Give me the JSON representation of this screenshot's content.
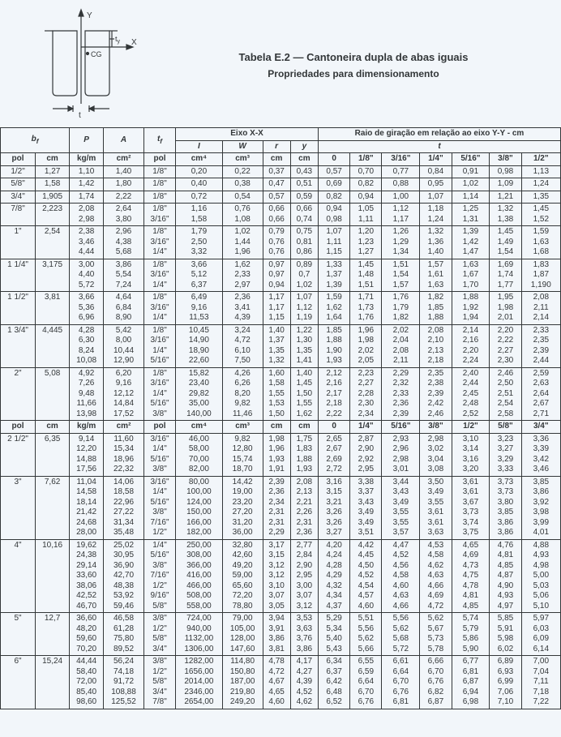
{
  "title_main": "Tabela E.2 — Cantoneira dupla de abas iguais",
  "title_sub": "Propriedades para dimensionamento",
  "diagram_labels": {
    "Y": "Y",
    "X": "X",
    "t_y": "t_y",
    "CG": "CG",
    "t": "t"
  },
  "header": {
    "bf": "b_f",
    "P": "P",
    "A": "A",
    "tf": "t_f",
    "eixo": "Eixo X-X",
    "raio": "Raio de giração em relação ao eixo Y-Y - cm",
    "I": "I",
    "W": "W",
    "r": "r",
    "y": "y",
    "t": "t",
    "pol": "pol",
    "cm": "cm",
    "kgm": "kg/m",
    "cm2": "cm²",
    "cm4": "cm⁴",
    "cm3": "cm³",
    "g0": "0",
    "g1_8": "1/8\"",
    "g3_16": "3/16\"",
    "g1_4": "1/4\"",
    "g5_16": "5/16\"",
    "g3_8": "3/8\"",
    "g1_2": "1/2\"",
    "g5_8": "5/8\"",
    "g3_4": "3/4\""
  },
  "rows1": [
    {
      "bf_pol": "1/2\"",
      "bf_cm": "1,27",
      "P": "1,10",
      "A": "1,40",
      "tf": "1/8\"",
      "I": "0,20",
      "W": "0,22",
      "r": "0,37",
      "y": "0,43",
      "g": [
        "0,57",
        "0,70",
        "0,77",
        "0,84",
        "0,91",
        "0,98",
        "1,13"
      ]
    },
    {
      "bf_pol": "5/8\"",
      "bf_cm": "1,58",
      "P": "1,42",
      "A": "1,80",
      "tf": "1/8\"",
      "I": "0,40",
      "W": "0,38",
      "r": "0,47",
      "y": "0,51",
      "g": [
        "0,69",
        "0,82",
        "0,88",
        "0,95",
        "1,02",
        "1,09",
        "1,24"
      ]
    },
    {
      "bf_pol": "3/4\"",
      "bf_cm": "1,905",
      "P": "1,74",
      "A": "2,22",
      "tf": "1/8\"",
      "I": "0,72",
      "W": "0,54",
      "r": "0,57",
      "y": "0,59",
      "g": [
        "0,82",
        "0,94",
        "1,00",
        "1,07",
        "1,14",
        "1,21",
        "1,35"
      ]
    },
    {
      "bf_pol": "7/8\"",
      "bf_cm": "2,223",
      "P": "2,08\n2,98",
      "A": "2,64\n3,80",
      "tf": "1/8\"\n3/16\"",
      "I": "1,16\n1,58",
      "W": "0,76\n1,08",
      "r": "0,66\n0,66",
      "y": "0,66\n0,74",
      "g": [
        "0,94\n0,98",
        "1,05\n1,11",
        "1,12\n1,17",
        "1,18\n1,24",
        "1,25\n1,31",
        "1,32\n1,38",
        "1,45\n1,52"
      ]
    },
    {
      "bf_pol": "1\"",
      "bf_cm": "2,54",
      "P": "2,38\n3,46\n4,44",
      "A": "2,96\n4,38\n5,68",
      "tf": "1/8\"\n3/16\"\n1/4\"",
      "I": "1,79\n2,50\n3,32",
      "W": "1,02\n1,44\n1,96",
      "r": "0,79\n0,76\n0,76",
      "y": "0,75\n0,81\n0,86",
      "g": [
        "1,07\n1,11\n1,15",
        "1,20\n1,23\n1,27",
        "1,26\n1,29\n1,34",
        "1,32\n1,36\n1,40",
        "1,39\n1,42\n1,47",
        "1,45\n1,49\n1,54",
        "1,59\n1,63\n1,68"
      ]
    },
    {
      "bf_pol": "1 1/4\"",
      "bf_cm": "3,175",
      "P": "3,00\n4,40\n5,72",
      "A": "3,86\n5,54\n7,24",
      "tf": "1/8\"\n3/16\"\n1/4\"",
      "I": "3,66\n5,12\n6,37",
      "W": "1,62\n2,33\n2,97",
      "r": "0,97\n0,97\n0,94",
      "y": "0,89\n0,7\n1,02",
      "g": [
        "1,33\n1,37\n1,39",
        "1,45\n1,48\n1,51",
        "1,51\n1,54\n1,57",
        "1,57\n1,61\n1,63",
        "1,63\n1,67\n1,70",
        "1,69\n1,74\n1,77",
        "1,83\n1,87\n1,190"
      ]
    },
    {
      "bf_pol": "1 1/2\"",
      "bf_cm": "3,81",
      "P": "3,66\n5,36\n6,96",
      "A": "4,64\n6,84\n8,90",
      "tf": "1/8\"\n3/16\"\n1/4\"",
      "I": "6,49\n9,16\n11,53",
      "W": "2,36\n3,41\n4,39",
      "r": "1,17\n1,17\n1,15",
      "y": "1,07\n1,12\n1,19",
      "g": [
        "1,59\n1,62\n1,64",
        "1,71\n1,73\n1,76",
        "1,76\n1,79\n1,82",
        "1,82\n1,85\n1,88",
        "1,88\n1,92\n1,94",
        "1,95\n1,98\n2,01",
        "2,08\n2,11\n2,14"
      ]
    },
    {
      "bf_pol": "1 3/4\"",
      "bf_cm": "4,445",
      "P": "4,28\n6,30\n8,24\n10,08",
      "A": "5,42\n8,00\n10,44\n12,90",
      "tf": "1/8\"\n3/16\"\n1/4\"\n5/16\"",
      "I": "10,45\n14,90\n18,90\n22,60",
      "W": "3,24\n4,72\n6,10\n7,50",
      "r": "1,40\n1,37\n1,35\n1,32",
      "y": "1,22\n1,30\n1,35\n1,41",
      "g": [
        "1,85\n1,88\n1,90\n1,93",
        "1,96\n1,98\n2,02\n2,05",
        "2,02\n2,04\n2,08\n2,11",
        "2,08\n2,10\n2,13\n2,18",
        "2,14\n2,16\n2,20\n2,24",
        "2,20\n2,22\n2,27\n2,30",
        "2,33\n2,35\n2,39\n2,44"
      ]
    },
    {
      "bf_pol": "2\"",
      "bf_cm": "5,08",
      "P": "4,92\n7,26\n9,48\n11,66\n13,98",
      "A": "6,20\n9,16\n12,12\n14,84\n17,52",
      "tf": "1/8\"\n3/16\"\n1/4\"\n5/16\"\n3/8\"",
      "I": "15,82\n23,40\n29,82\n35,00\n140,00",
      "W": "4,26\n6,26\n8,20\n9,82\n11,46",
      "r": "1,60\n1,58\n1,55\n1,53\n1,50",
      "y": "1,40\n1,45\n1,50\n1,55\n1,62",
      "g": [
        "2,12\n2,16\n2,17\n2,18\n2,22",
        "2,23\n2,27\n2,28\n2,30\n2,34",
        "2,29\n2,32\n2,33\n2,36\n2,39",
        "2,35\n2,38\n2,39\n2,42\n2,46",
        "2,40\n2,44\n2,45\n2,48\n2,52",
        "2,46\n2,50\n2,51\n2,54\n2,58",
        "2,59\n2,63\n2,64\n2,67\n2,71"
      ]
    }
  ],
  "rows2": [
    {
      "bf_pol": "2 1/2\"",
      "bf_cm": "6,35",
      "P": "9,14\n12,20\n14,88\n17,56",
      "A": "11,60\n15,34\n18,96\n22,32",
      "tf": "3/16\"\n1/4\"\n5/16\"\n3/8\"",
      "I": "46,00\n58,00\n70,00\n82,00",
      "W": "9,82\n12,80\n15,74\n18,70",
      "r": "1,98\n1,96\n1,93\n1,91",
      "y": "1,75\n1,83\n1,88\n1,93",
      "g": [
        "2,65\n2,67\n2,69\n2,72",
        "2,87\n2,90\n2,92\n2,95",
        "2,93\n2,96\n2,98\n3,01",
        "2,98\n3,02\n3,04\n3,08",
        "3,10\n3,14\n3,16\n3,20",
        "3,23\n3,27\n3,29\n3,33",
        "3,36\n3,39\n3,42\n3,46"
      ]
    },
    {
      "bf_pol": "3\"",
      "bf_cm": "7,62",
      "P": "11,04\n14,58\n18,14\n21,42\n24,68\n28,00",
      "A": "14,06\n18,58\n22,96\n27,22\n31,34\n35,48",
      "tf": "3/16\"\n1/4\"\n5/16\"\n3/8\"\n7/16\"\n1/2\"",
      "I": "80,00\n100,00\n124,00\n150,00\n166,00\n182,00",
      "W": "14,42\n19,00\n23,20\n27,20\n31,20\n36,00",
      "r": "2,39\n2,36\n2,34\n2,31\n2,31\n2,29",
      "y": "2,08\n2,13\n2,21\n2,26\n2,31\n2,36",
      "g": [
        "3,16\n3,15\n3,21\n3,26\n3,26\n3,27",
        "3,38\n3,37\n3,43\n3,49\n3,49\n3,51",
        "3,44\n3,43\n3,49\n3,55\n3,55\n3,57",
        "3,50\n3,49\n3,55\n3,61\n3,61\n3,63",
        "3,61\n3,61\n3,67\n3,73\n3,74\n3,75",
        "3,73\n3,73\n3,80\n3,85\n3,86\n3,86",
        "3,85\n3,86\n3,92\n3,98\n3,99\n4,01"
      ]
    },
    {
      "bf_pol": "4\"",
      "bf_cm": "10,16",
      "P": "19,62\n24,38\n29,14\n33,60\n38,06\n42,52\n46,70",
      "A": "25,02\n30,95\n36,90\n42,70\n48,38\n53,92\n59,46",
      "tf": "1/4\"\n5/16\"\n3/8\"\n7/16\"\n1/2\"\n9/16\"\n5/8\"",
      "I": "250,00\n308,00\n366,00\n416,00\n466,00\n508,00\n558,00",
      "W": "32,80\n42,60\n49,20\n59,00\n65,60\n72,20\n78,80",
      "r": "3,17\n3,15\n3,12\n3,12\n3,10\n3,07\n3,05",
      "y": "2,77\n2,84\n2,90\n2,95\n3,00\n3,07\n3,12",
      "g": [
        "4,20\n4,24\n4,28\n4,29\n4,32\n4,34\n4,37",
        "4,42\n4,45\n4,50\n4,52\n4,54\n4,57\n4,60",
        "4,47\n4,52\n4,56\n4,58\n4,60\n4,63\n4,66",
        "4,53\n4,58\n4,62\n4,63\n4,66\n4,69\n4,72",
        "4,65\n4,69\n4,73\n4,75\n4,78\n4,81\n4,85",
        "4,76\n4,81\n4,85\n4,87\n4,90\n4,93\n4,97",
        "4,88\n4,93\n4,98\n5,00\n5,03\n5,06\n5,10"
      ]
    },
    {
      "bf_pol": "5\"",
      "bf_cm": "12,7",
      "P": "36,60\n48,20\n59,60\n70,20",
      "A": "46,58\n61,28\n75,80\n89,52",
      "tf": "3/8\"\n1/2\"\n5/8\"\n3/4\"",
      "I": "724,00\n940,00\n1132,00\n1306,00",
      "W": "79,00\n105,00\n128,00\n147,60",
      "r": "3,94\n3,91\n3,86\n3,81",
      "y": "3,53\n3,63\n3,76\n3,86",
      "g": [
        "5,29\n5,34\n5,40\n5,43",
        "5,51\n5,56\n5,62\n5,66",
        "5,56\n5,62\n5,68\n5,72",
        "5,62\n5,67\n5,73\n5,78",
        "5,74\n5,79\n5,86\n5,90",
        "5,85\n5,91\n5,98\n6,02",
        "5,97\n6,03\n6,09\n6,14"
      ]
    },
    {
      "bf_pol": "6\"",
      "bf_cm": "15,24",
      "P": "44,44\n58,40\n72,00\n85,40\n98,60",
      "A": "56,24\n74,18\n91,72\n108,88\n125,52",
      "tf": "3/8\"\n1/2\"\n5/8\"\n3/4\"\n7/8\"",
      "I": "1282,00\n1656,00\n2014,00\n2346,00\n2654,00",
      "W": "114,80\n150,80\n187,00\n219,80\n249,20",
      "r": "4,78\n4,72\n4,67\n4,65\n4,60",
      "y": "4,17\n4,27\n4,39\n4,52\n4,62",
      "g": [
        "6,34\n6,37\n6,42\n6,48\n6,52",
        "6,55\n6,59\n6,64\n6,70\n6,76",
        "6,61\n6,64\n6,70\n6,76\n6,81",
        "6,66\n6,70\n6,76\n6,82\n6,87",
        "6,77\n6,81\n6,87\n6,94\n6,98",
        "6,89\n6,93\n6,99\n7,06\n7,10",
        "7,00\n7,04\n7,11\n7,18\n7,22"
      ]
    }
  ],
  "colors": {
    "bg": "#f2f6fa",
    "border": "#333739",
    "text": "#333739"
  }
}
